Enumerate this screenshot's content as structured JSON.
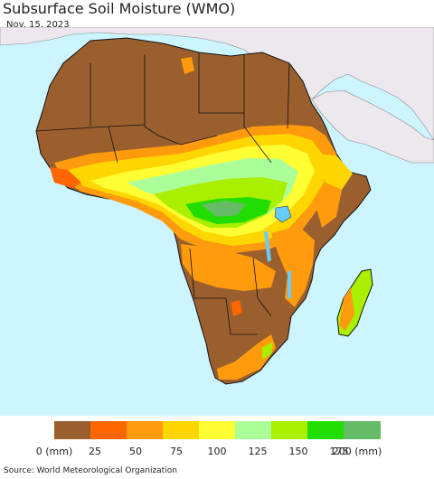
{
  "header": {
    "title": "Subsurface Soil Moisture (WMO)",
    "date": "Nov. 15, 2023"
  },
  "map": {
    "ocean_color": "#ccf5ff",
    "other_land_color": "#ede8ee",
    "region": "Africa"
  },
  "legend": {
    "items": [
      {
        "color": "#9b5f2e"
      },
      {
        "color": "#ff6600"
      },
      {
        "color": "#ff9b0d"
      },
      {
        "color": "#ffd600"
      },
      {
        "color": "#ffff33"
      },
      {
        "color": "#aaff99"
      },
      {
        "color": "#aaee00"
      },
      {
        "color": "#22dd00"
      },
      {
        "color": "#66bb66"
      }
    ],
    "ticks": [
      "0 (mm)",
      "25",
      "50",
      "75",
      "100",
      "125",
      "150",
      "175",
      "200 (mm)"
    ]
  },
  "footer": {
    "source": "Source: World Meteorological Organization"
  }
}
